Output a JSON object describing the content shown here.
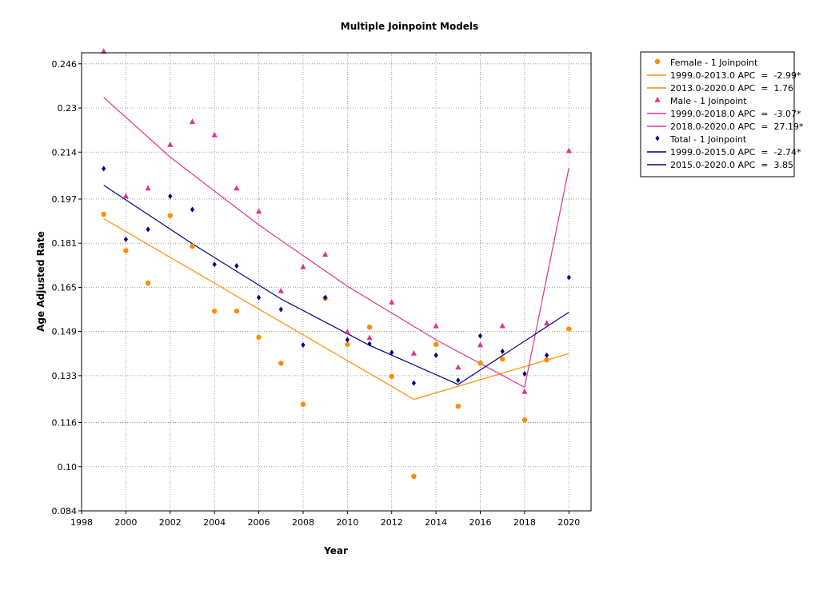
{
  "chart_data": {
    "type": "scatter",
    "title": "Multiple Joinpoint Models",
    "xlabel": "Year",
    "ylabel": "Age Adjusted Rate",
    "xlim": [
      1998,
      2021
    ],
    "ylim": [
      0.084,
      0.25
    ],
    "x_ticks": [
      "1998",
      "2000",
      "2002",
      "2004",
      "2006",
      "2008",
      "2010",
      "2012",
      "2014",
      "2016",
      "2018",
      "2020"
    ],
    "y_ticks": [
      "0.084",
      "0.10",
      "0.116",
      "0.133",
      "0.149",
      "0.165",
      "0.181",
      "0.197",
      "0.214",
      "0.23",
      "0.246"
    ],
    "grid": true,
    "legend_position": "right",
    "series": [
      {
        "name": "Female - 1 Joinpoint",
        "marker": "circle",
        "color": "#ff8c00",
        "x": [
          1999,
          2000,
          2001,
          2002,
          2003,
          2004,
          2005,
          2006,
          2007,
          2008,
          2009,
          2010,
          2011,
          2012,
          2013,
          2014,
          2015,
          2016,
          2017,
          2018,
          2019,
          2020
        ],
        "y": [
          0.1915,
          0.1783,
          0.1665,
          0.191,
          0.1799,
          0.1564,
          0.1564,
          0.1469,
          0.1375,
          0.1226,
          0.161,
          0.1443,
          0.1506,
          0.1327,
          0.0965,
          0.1443,
          0.1219,
          0.1375,
          0.139,
          0.117,
          0.1387,
          0.1499
        ]
      },
      {
        "name": "Male - 1 Joinpoint",
        "marker": "triangle",
        "color": "#e0358f",
        "x": [
          1999,
          2000,
          2001,
          2002,
          2003,
          2004,
          2005,
          2006,
          2007,
          2008,
          2009,
          2010,
          2011,
          2012,
          2013,
          2014,
          2015,
          2016,
          2017,
          2018,
          2019,
          2020
        ],
        "y": [
          0.2505,
          0.198,
          0.2009,
          0.2167,
          0.225,
          0.2202,
          0.2009,
          0.1925,
          0.1637,
          0.1724,
          0.1769,
          0.1488,
          0.1467,
          0.1596,
          0.1411,
          0.151,
          0.136,
          0.1441,
          0.151,
          0.1272,
          0.152,
          0.2145
        ]
      },
      {
        "name": "Total - 1 Joinpoint",
        "marker": "diamond",
        "color": "#00008b",
        "x": [
          1999,
          2000,
          2001,
          2002,
          2003,
          2004,
          2005,
          2006,
          2007,
          2008,
          2009,
          2010,
          2011,
          2012,
          2013,
          2014,
          2015,
          2016,
          2017,
          2018,
          2019,
          2020
        ],
        "y": [
          0.208,
          0.1824,
          0.186,
          0.198,
          0.1932,
          0.1733,
          0.1728,
          0.1613,
          0.157,
          0.1441,
          0.1613,
          0.146,
          0.1445,
          0.1414,
          0.1303,
          0.1404,
          0.1313,
          0.1474,
          0.1418,
          0.1337,
          0.1404,
          0.1686
        ]
      }
    ],
    "fit_lines": [
      {
        "label": "1999.0-2013.0 APC  =  -2.99*",
        "color": "#ff8c00",
        "points": [
          [
            1999,
            0.1899
          ],
          [
            2013,
            0.1244
          ]
        ]
      },
      {
        "label": "2013.0-2020.0 APC  =  1.76",
        "color": "#ff8c00",
        "points": [
          [
            2013,
            0.1244
          ],
          [
            2020,
            0.141
          ]
        ]
      },
      {
        "label": "1999.0-2018.0 APC  =  -3.07*",
        "color": "#e0358f",
        "points": [
          [
            1999,
            0.2338
          ],
          [
            2002,
            0.2122
          ],
          [
            2006,
            0.1876
          ],
          [
            2010,
            0.1654
          ],
          [
            2014,
            0.146
          ],
          [
            2018,
            0.1288
          ]
        ]
      },
      {
        "label": "2018.0-2020.0 APC  =  27.19*",
        "color": "#e0358f",
        "points": [
          [
            2018,
            0.1288
          ],
          [
            2020,
            0.2083
          ]
        ]
      },
      {
        "label": "1999.0-2015.0 APC  =  -2.74*",
        "color": "#00008b",
        "points": [
          [
            1999,
            0.202
          ],
          [
            2003,
            0.1808
          ],
          [
            2007,
            0.1608
          ],
          [
            2011,
            0.144
          ],
          [
            2015,
            0.1298
          ]
        ]
      },
      {
        "label": "2015.0-2020.0 APC  =  3.85",
        "color": "#00008b",
        "points": [
          [
            2015,
            0.1298
          ],
          [
            2020,
            0.156
          ]
        ]
      }
    ],
    "legend": [
      {
        "kind": "marker",
        "marker": "circle",
        "color": "#ff8c00",
        "label": "Female - 1 Joinpoint"
      },
      {
        "kind": "line",
        "color": "#ff8c00",
        "label": "1999.0-2013.0 APC  =  -2.99*"
      },
      {
        "kind": "line",
        "color": "#ff8c00",
        "label": "2013.0-2020.0 APC  =  1.76"
      },
      {
        "kind": "marker",
        "marker": "triangle",
        "color": "#e0358f",
        "label": "Male - 1 Joinpoint"
      },
      {
        "kind": "line",
        "color": "#e0358f",
        "label": "1999.0-2018.0 APC  =  -3.07*"
      },
      {
        "kind": "line",
        "color": "#e0358f",
        "label": "2018.0-2020.0 APC  =  27.19*"
      },
      {
        "kind": "marker",
        "marker": "diamond",
        "color": "#00008b",
        "label": "Total - 1 Joinpoint"
      },
      {
        "kind": "line",
        "color": "#00008b",
        "label": "1999.0-2015.0 APC  =  -2.74*"
      },
      {
        "kind": "line",
        "color": "#00008b",
        "label": "2015.0-2020.0 APC  =  3.85"
      }
    ]
  }
}
